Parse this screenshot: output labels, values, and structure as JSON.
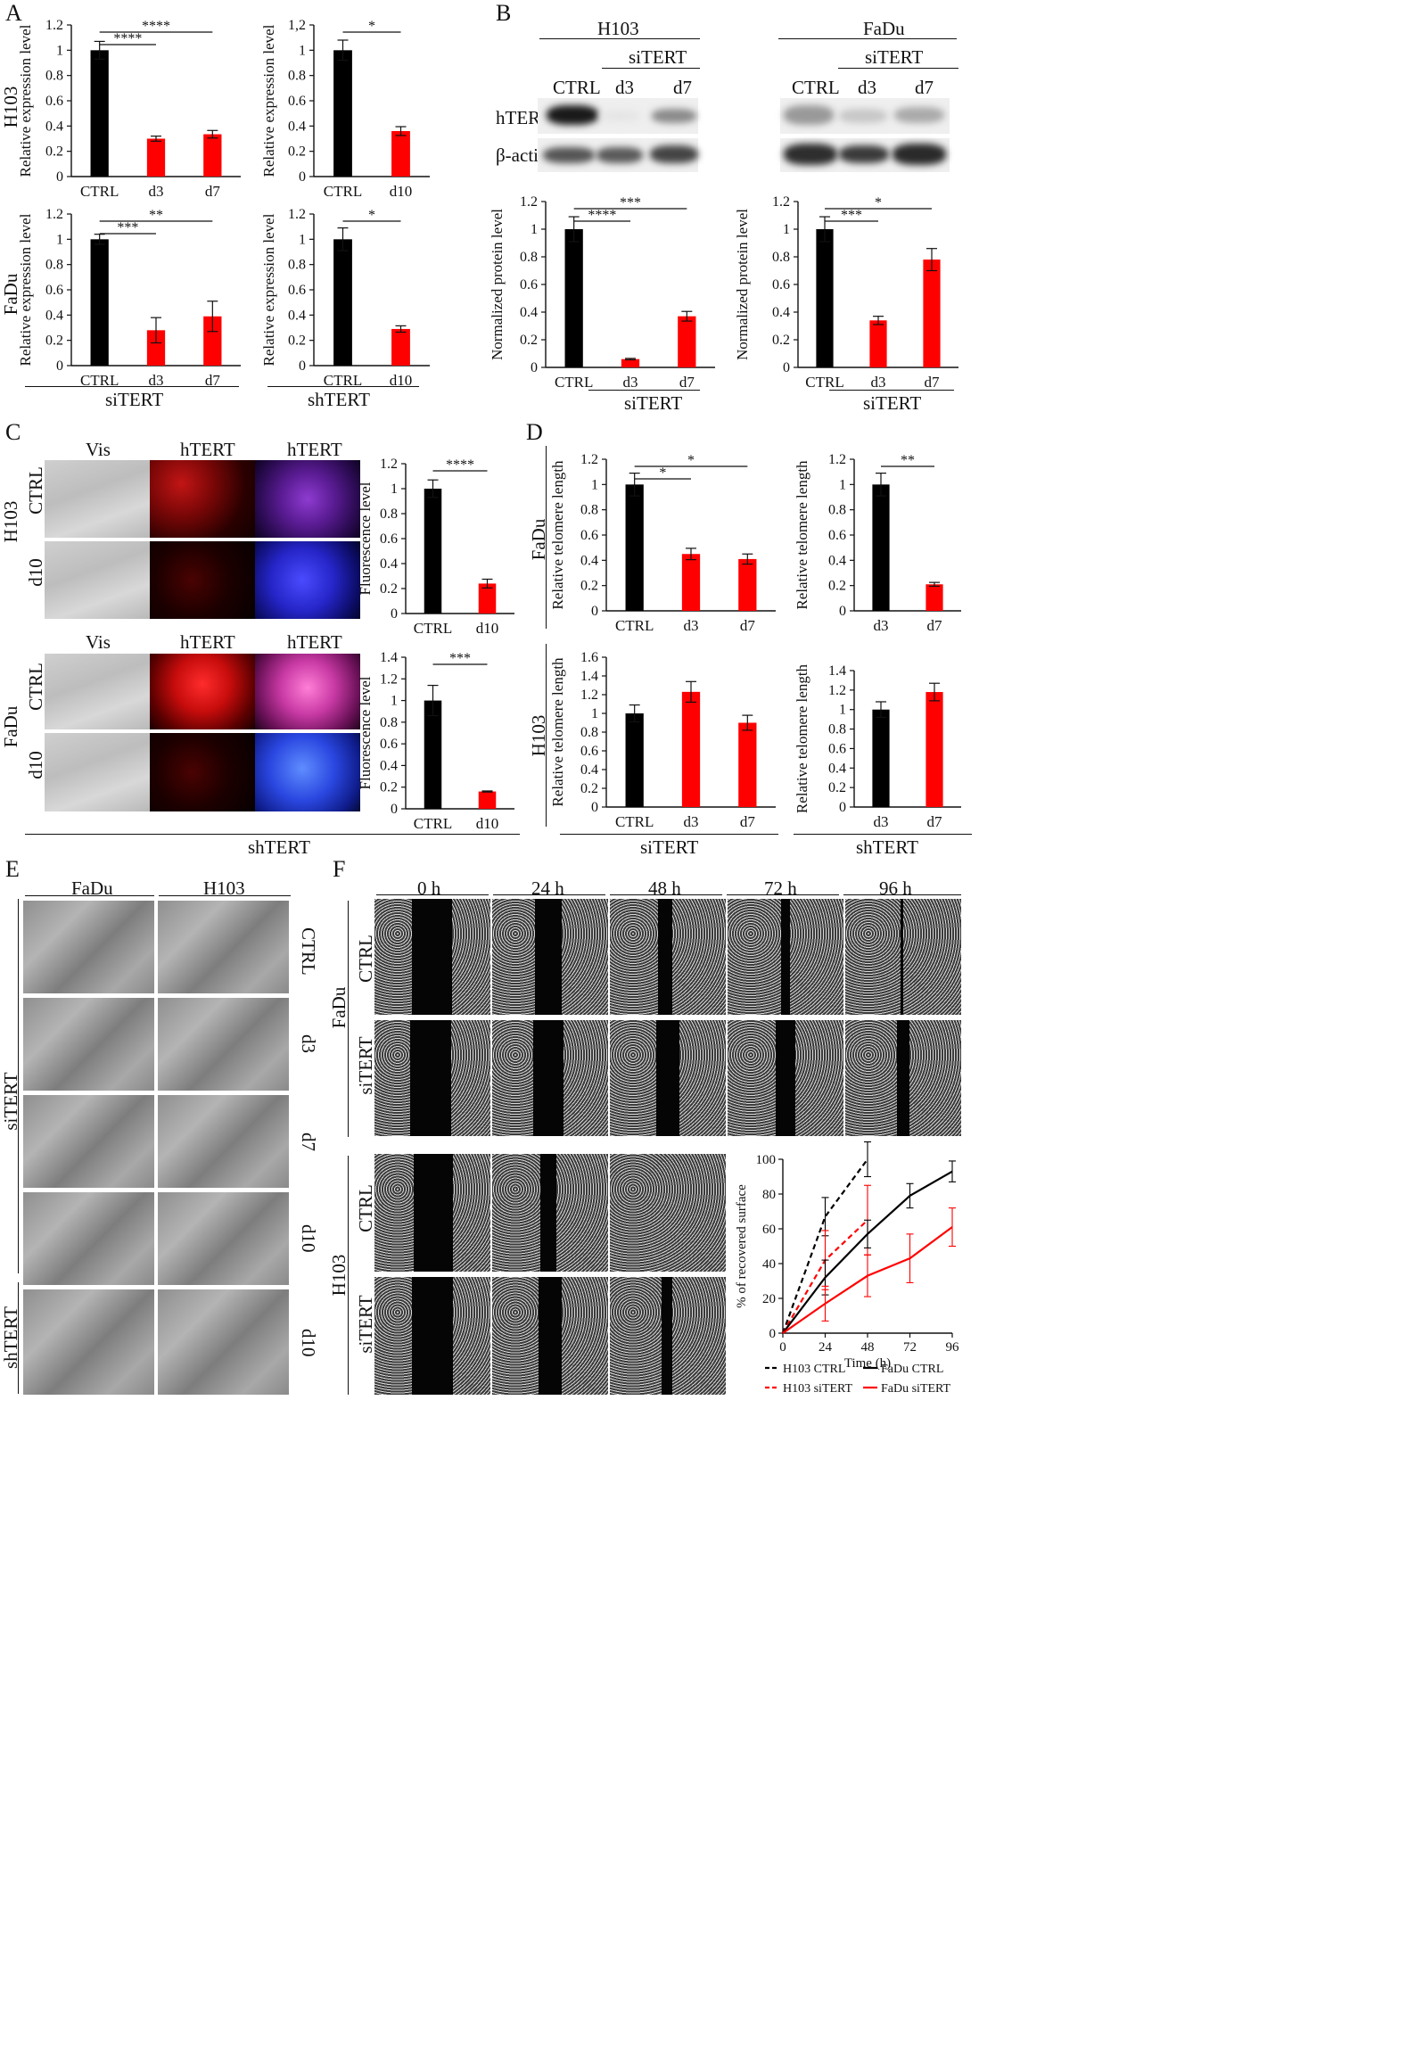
{
  "panels": {
    "A": "A",
    "B": "B",
    "C": "C",
    "D": "D",
    "E": "E",
    "F": "F"
  },
  "colors": {
    "ctrl": "#000000",
    "treated": "#ff0000",
    "err": "#000000"
  },
  "panelA": {
    "row_labels": [
      "H103",
      "FaDu"
    ],
    "group_labels": [
      "siTERT",
      "shTERT"
    ],
    "ylabel": "Relative expression level"
  },
  "panelB": {
    "cell_lines": [
      "H103",
      "FaDu"
    ],
    "siTERT": "siTERT",
    "lanes": [
      "CTRL",
      "d3",
      "d7"
    ],
    "blot_rows": [
      "hTERT",
      "β-actin"
    ],
    "ylabel": "Normalized protein level"
  },
  "panelC": {
    "columns": [
      "Vis",
      "hTERT",
      "hTERT"
    ],
    "row_lines": [
      "H103",
      "FaDu"
    ],
    "row_conditions": [
      "CTRL",
      "d10"
    ],
    "group": "shTERT",
    "ylabel": "Fluorescence level"
  },
  "panelD": {
    "row_labels": [
      "FaDu",
      "H103"
    ],
    "group_labels": [
      "siTERT",
      "shTERT"
    ],
    "ylabel": "Relative telomere length"
  },
  "panelE": {
    "columns": [
      "FaDu",
      "H103"
    ],
    "rows": [
      "CTRL",
      "d3",
      "d7",
      "d10",
      "d10"
    ],
    "groups": [
      "siTERT",
      "shTERT"
    ]
  },
  "panelF": {
    "times": [
      "0 h",
      "24 h",
      "48 h",
      "72 h",
      "96 h"
    ],
    "lines": [
      "FaDu",
      "H103"
    ],
    "conditions": [
      "CTRL",
      "siTERT"
    ]
  },
  "chart_data": [
    {
      "id": "A1",
      "type": "bar",
      "categories": [
        "CTRL",
        "d3",
        "d7"
      ],
      "values": [
        1.0,
        0.3,
        0.335
      ],
      "errors": [
        0.07,
        0.02,
        0.03
      ],
      "ylim": [
        0,
        1.2
      ],
      "yticks": [
        "0",
        "0.2",
        "0.4",
        "0.6",
        "0.8",
        "1",
        "1.2"
      ],
      "ylabel": "Relative expression level",
      "sig": [
        {
          "a": 0,
          "b": 1,
          "label": "****"
        },
        {
          "a": 0,
          "b": 2,
          "label": "****"
        }
      ]
    },
    {
      "id": "A2",
      "type": "bar",
      "categories": [
        "CTRL",
        "d10"
      ],
      "values": [
        1.0,
        0.36
      ],
      "errors": [
        0.08,
        0.035
      ],
      "ylim": [
        0,
        1.2
      ],
      "yticks": [
        "0",
        "0.2",
        "0.4",
        "0.6",
        "0.8",
        "1",
        "1,2"
      ],
      "ylabel": "Relative expression level",
      "sig": [
        {
          "a": 0,
          "b": 1,
          "label": "*"
        }
      ]
    },
    {
      "id": "A3",
      "type": "bar",
      "categories": [
        "CTRL",
        "d3",
        "d7"
      ],
      "values": [
        1.0,
        0.28,
        0.39
      ],
      "errors": [
        0.04,
        0.1,
        0.12
      ],
      "ylim": [
        0,
        1.2
      ],
      "yticks": [
        "0",
        "0.2",
        "0.4",
        "0.6",
        "0.8",
        "1",
        "1.2"
      ],
      "ylabel": "Relative expression level",
      "sig": [
        {
          "a": 0,
          "b": 1,
          "label": "***"
        },
        {
          "a": 0,
          "b": 2,
          "label": "**"
        }
      ]
    },
    {
      "id": "A4",
      "type": "bar",
      "categories": [
        "CTRL",
        "d10"
      ],
      "values": [
        1.0,
        0.29
      ],
      "errors": [
        0.09,
        0.025
      ],
      "ylim": [
        0,
        1.2
      ],
      "yticks": [
        "0",
        "0.2",
        "0.4",
        "0.6",
        "0.8",
        "1",
        "1.2"
      ],
      "ylabel": "Relative expression level",
      "sig": [
        {
          "a": 0,
          "b": 1,
          "label": "*"
        }
      ]
    },
    {
      "id": "B1",
      "type": "bar",
      "categories": [
        "CTRL",
        "d3",
        "d7"
      ],
      "values": [
        1.0,
        0.06,
        0.37
      ],
      "errors": [
        0.09,
        0.005,
        0.035
      ],
      "ylim": [
        0,
        1.2
      ],
      "yticks": [
        "0",
        "0.2",
        "0.4",
        "0.6",
        "0.8",
        "1",
        "1.2"
      ],
      "ylabel": "Normalized protein level",
      "sig": [
        {
          "a": 0,
          "b": 1,
          "label": "****"
        },
        {
          "a": 0,
          "b": 2,
          "label": "***"
        }
      ]
    },
    {
      "id": "B2",
      "type": "bar",
      "categories": [
        "CTRL",
        "d3",
        "d7"
      ],
      "values": [
        1.0,
        0.34,
        0.78
      ],
      "errors": [
        0.09,
        0.03,
        0.08
      ],
      "ylim": [
        0,
        1.2
      ],
      "yticks": [
        "0",
        "0.2",
        "0.4",
        "0.6",
        "0.8",
        "1",
        "1.2"
      ],
      "ylabel": "Normalized protein level",
      "sig": [
        {
          "a": 0,
          "b": 1,
          "label": "***"
        },
        {
          "a": 0,
          "b": 2,
          "label": "*"
        }
      ]
    },
    {
      "id": "C1",
      "type": "bar",
      "categories": [
        "CTRL",
        "d10"
      ],
      "values": [
        1.0,
        0.24
      ],
      "errors": [
        0.07,
        0.035
      ],
      "ylim": [
        0,
        1.2
      ],
      "yticks": [
        "0",
        "0.2",
        "0.4",
        "0.6",
        "0.8",
        "1",
        "1.2"
      ],
      "ylabel": "Fluorescence level",
      "sig": [
        {
          "a": 0,
          "b": 1,
          "label": "****"
        }
      ]
    },
    {
      "id": "C2",
      "type": "bar",
      "categories": [
        "CTRL",
        "d10"
      ],
      "values": [
        1.0,
        0.16
      ],
      "errors": [
        0.14,
        0.005
      ],
      "ylim": [
        0,
        1.4
      ],
      "yticks": [
        "0",
        "0.2",
        "0.4",
        "0.6",
        "0.8",
        "1",
        "1.2",
        "1.4"
      ],
      "ylabel": "Fluorescence level",
      "sig": [
        {
          "a": 0,
          "b": 1,
          "label": "***"
        }
      ]
    },
    {
      "id": "D1",
      "type": "bar",
      "categories": [
        "CTRL",
        "d3",
        "d7"
      ],
      "values": [
        1.0,
        0.45,
        0.41
      ],
      "errors": [
        0.09,
        0.045,
        0.04
      ],
      "ylim": [
        0,
        1.2
      ],
      "yticks": [
        "0",
        "0.2",
        "0.4",
        "0.6",
        "0.8",
        "1",
        "1.2"
      ],
      "ylabel": "Relative telomere length",
      "sig": [
        {
          "a": 0,
          "b": 1,
          "label": "*"
        },
        {
          "a": 0,
          "b": 2,
          "label": "*"
        }
      ]
    },
    {
      "id": "D2",
      "type": "bar",
      "categories": [
        "d3",
        "d7"
      ],
      "values": [
        1.0,
        0.21
      ],
      "errors": [
        0.09,
        0.015
      ],
      "ylim": [
        0,
        1.2
      ],
      "yticks": [
        "0",
        "0.2",
        "0.4",
        "0.6",
        "0.8",
        "1",
        "1.2"
      ],
      "ylabel": "Relative telomere length",
      "sig": [
        {
          "a": 0,
          "b": 1,
          "label": "**"
        }
      ]
    },
    {
      "id": "D3",
      "type": "bar",
      "categories": [
        "CTRL",
        "d3",
        "d7"
      ],
      "values": [
        1.0,
        1.23,
        0.9
      ],
      "errors": [
        0.09,
        0.11,
        0.08
      ],
      "ylim": [
        0,
        1.6
      ],
      "yticks": [
        "0",
        "0.2",
        "0.4",
        "0.6",
        "0.8",
        "1",
        "1.2",
        "1.4",
        "1.6"
      ],
      "ylabel": "Relative telomere length",
      "sig": []
    },
    {
      "id": "D4",
      "type": "bar",
      "categories": [
        "d3",
        "d7"
      ],
      "values": [
        1.0,
        1.18
      ],
      "errors": [
        0.08,
        0.09
      ],
      "ylim": [
        0,
        1.4
      ],
      "yticks": [
        "0",
        "0.2",
        "0.4",
        "0.6",
        "0.8",
        "1",
        "1.2",
        "1.4"
      ],
      "ylabel": "Relative telomere length",
      "sig": []
    },
    {
      "id": "F1",
      "type": "line",
      "x": [
        0,
        24,
        48,
        72,
        96
      ],
      "xlabel": "Time (h)",
      "ylabel": "% of recovered surface",
      "ylim": [
        0,
        100
      ],
      "yticks": [
        "0",
        "20",
        "40",
        "60",
        "80",
        "100"
      ],
      "xticks": [
        "0",
        "24",
        "48",
        "72",
        "96"
      ],
      "series": [
        {
          "name": "H103 CTRL",
          "x": [
            0,
            24,
            48
          ],
          "y": [
            0,
            67,
            100
          ],
          "err": [
            0,
            11,
            10
          ],
          "color": "#000000",
          "dashed": true
        },
        {
          "name": "H103 siTERT",
          "x": [
            0,
            24,
            48
          ],
          "y": [
            0,
            42,
            65
          ],
          "err": [
            0,
            17,
            20
          ],
          "color": "#ff0000",
          "dashed": true
        },
        {
          "name": "FaDu CTRL",
          "x": [
            0,
            24,
            48,
            72,
            96
          ],
          "y": [
            0,
            32,
            57,
            79,
            93
          ],
          "err": [
            0,
            10,
            8,
            7,
            6
          ],
          "color": "#000000",
          "dashed": false
        },
        {
          "name": "FaDu siTERT",
          "x": [
            0,
            24,
            48,
            72,
            96
          ],
          "y": [
            0,
            17,
            33,
            43,
            61
          ],
          "err": [
            0,
            10,
            12,
            14,
            11
          ],
          "color": "#ff0000",
          "dashed": false
        }
      ]
    }
  ]
}
